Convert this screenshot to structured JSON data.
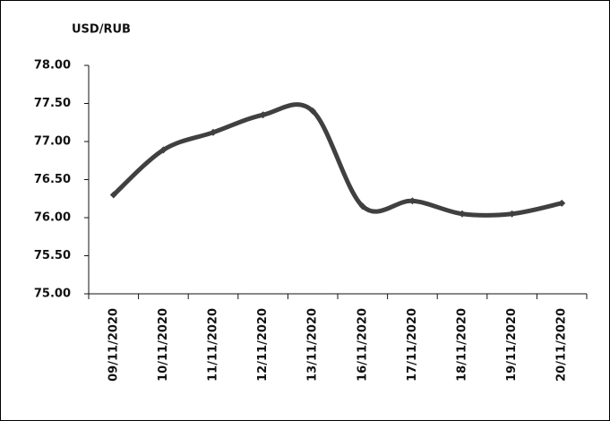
{
  "chart_data": {
    "type": "line",
    "y_axis_label": "USD/RUB",
    "categories": [
      "09/11/2020",
      "10/11/2020",
      "11/11/2020",
      "12/11/2020",
      "13/11/2020",
      "16/11/2020",
      "17/11/2020",
      "18/11/2020",
      "19/11/2020",
      "20/11/2020"
    ],
    "series": [
      {
        "name": "USD/RUB",
        "color": "#404040",
        "values": [
          76.3,
          76.89,
          77.12,
          77.35,
          77.4,
          76.15,
          76.22,
          76.05,
          76.05,
          76.19
        ]
      }
    ],
    "smooth": true,
    "ylim": [
      75,
      78
    ],
    "yticks": [
      {
        "value": 75,
        "label": "75.00"
      },
      {
        "value": 75.5,
        "label": "75.50"
      },
      {
        "value": 76,
        "label": "76.00"
      },
      {
        "value": 76.5,
        "label": "76.50"
      },
      {
        "value": 77,
        "label": "77.00"
      },
      {
        "value": 77.5,
        "label": "77.50"
      },
      {
        "value": 78,
        "label": "78.00"
      }
    ],
    "grid": false
  }
}
